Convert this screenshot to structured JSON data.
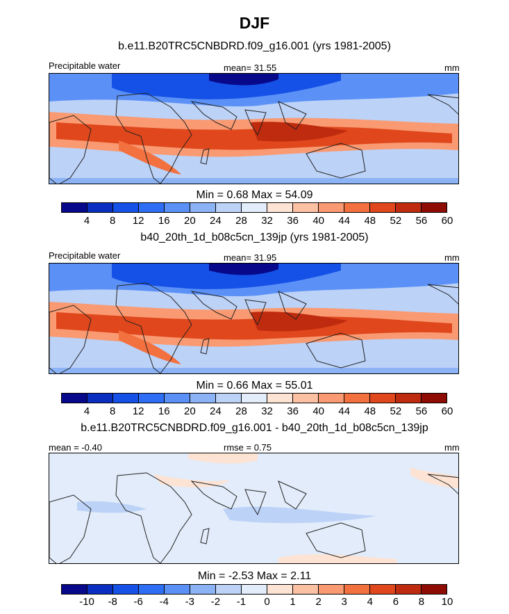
{
  "title": "DJF",
  "panels": [
    {
      "subtitle": "b.e11.B20TRC5CNBDRD.f09_g16.001 (yrs 1981-2005)",
      "left_label": "Precipitable water",
      "center_label": "mean=  31.55",
      "right_label": "mm",
      "minmax": "Min =   0.68 Max =  54.09",
      "field_type": "full",
      "colorbar_ticks": [
        "4",
        "8",
        "12",
        "16",
        "20",
        "24",
        "28",
        "32",
        "36",
        "40",
        "44",
        "48",
        "52",
        "56",
        "60"
      ]
    },
    {
      "subtitle": "b40_20th_1d_b08c5cn_139jp (yrs 1981-2005)",
      "left_label": "Precipitable water",
      "center_label": "mean=  31.95",
      "right_label": "mm",
      "minmax": "Min =   0.66 Max =  55.01",
      "field_type": "full",
      "colorbar_ticks": [
        "4",
        "8",
        "12",
        "16",
        "20",
        "24",
        "28",
        "32",
        "36",
        "40",
        "44",
        "48",
        "52",
        "56",
        "60"
      ]
    },
    {
      "subtitle": "b.e11.B20TRC5CNBDRD.f09_g16.001 - b40_20th_1d_b08c5cn_139jp",
      "left_label": "mean =  -0.40",
      "center_label": "rmse =   0.75",
      "right_label": "mm",
      "minmax": "Min =  -2.53 Max =   2.11",
      "field_type": "diff",
      "colorbar_ticks": [
        "-10",
        "-8",
        "-6",
        "-4",
        "-3",
        "-2",
        "-1",
        "0",
        "1",
        "2",
        "3",
        "4",
        "6",
        "8",
        "10"
      ]
    }
  ],
  "colorbar_colors": [
    "#08088a",
    "#0a2fc0",
    "#1551e6",
    "#2e6ef5",
    "#5b91f7",
    "#8cb3f5",
    "#bcd2f7",
    "#e2ecfa",
    "#fde3d3",
    "#fcc0a3",
    "#f99a72",
    "#f3703f",
    "#e0471c",
    "#bf2b0e",
    "#8f0c04"
  ]
}
